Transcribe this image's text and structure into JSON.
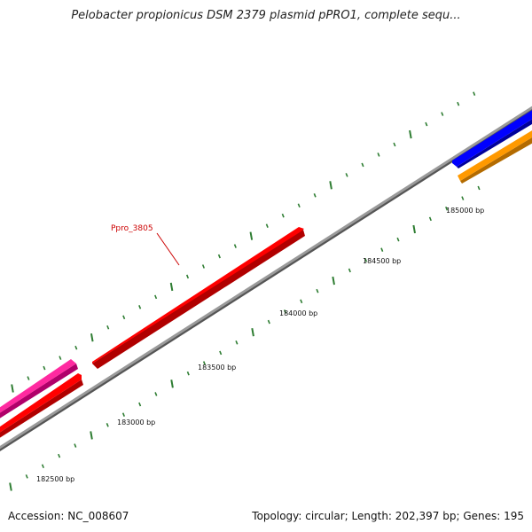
{
  "title": "Pelobacter propionicus DSM 2379 plasmid pPRO1, complete sequ...",
  "accession_text": "Accession: NC_008607",
  "stats_text": "Topology: circular; Length: 202,397 bp; Genes: 195",
  "colors": {
    "backbone": "#8a8a8a",
    "tick": "#2e7d32",
    "gene_red": "#ff0000",
    "gene_pink": "#ff2aa0",
    "gene_blue": "#0000ff",
    "gene_orange": "#ff9900",
    "label_red": "#cc0000"
  },
  "axis": {
    "labeled_ticks": [
      "182500 bp",
      "183000 bp",
      "183500 bp",
      "184000 bp",
      "184500 bp",
      "185000 bp"
    ]
  },
  "genes": [
    {
      "label": "Ppro_3805",
      "color": "red",
      "strand": "forward"
    }
  ]
}
